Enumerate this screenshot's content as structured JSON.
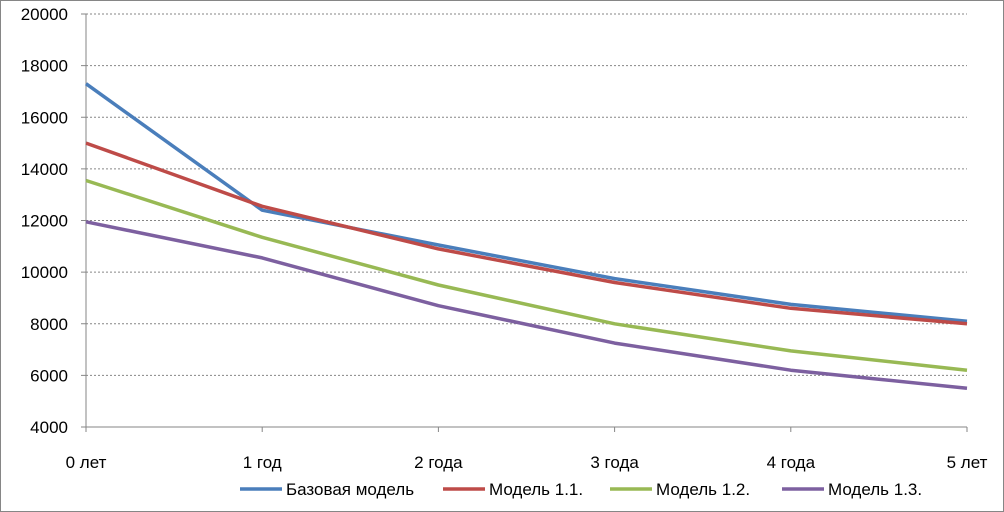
{
  "chart_data": {
    "type": "line",
    "categories": [
      "0 лет",
      "1 год",
      "2 года",
      "3 года",
      "4 года",
      "5 лет"
    ],
    "ylim": [
      4000,
      20000
    ],
    "yticks": [
      4000,
      6000,
      8000,
      10000,
      12000,
      14000,
      16000,
      18000,
      20000
    ],
    "grid": true,
    "legend_position": "bottom",
    "series": [
      {
        "name": "Базовая модель",
        "color": "#4a7ebb",
        "values": [
          17300,
          12400,
          11050,
          9750,
          8750,
          8100
        ]
      },
      {
        "name": "Модель 1.1.",
        "color": "#be4b48",
        "values": [
          15000,
          12550,
          10900,
          9600,
          8600,
          8000
        ]
      },
      {
        "name": "Модель 1.2.",
        "color": "#98b954",
        "values": [
          13550,
          11350,
          9500,
          8000,
          6950,
          6200
        ]
      },
      {
        "name": "Модель 1.3.",
        "color": "#7d60a0",
        "values": [
          11950,
          10550,
          8700,
          7250,
          6200,
          5500
        ]
      }
    ]
  }
}
